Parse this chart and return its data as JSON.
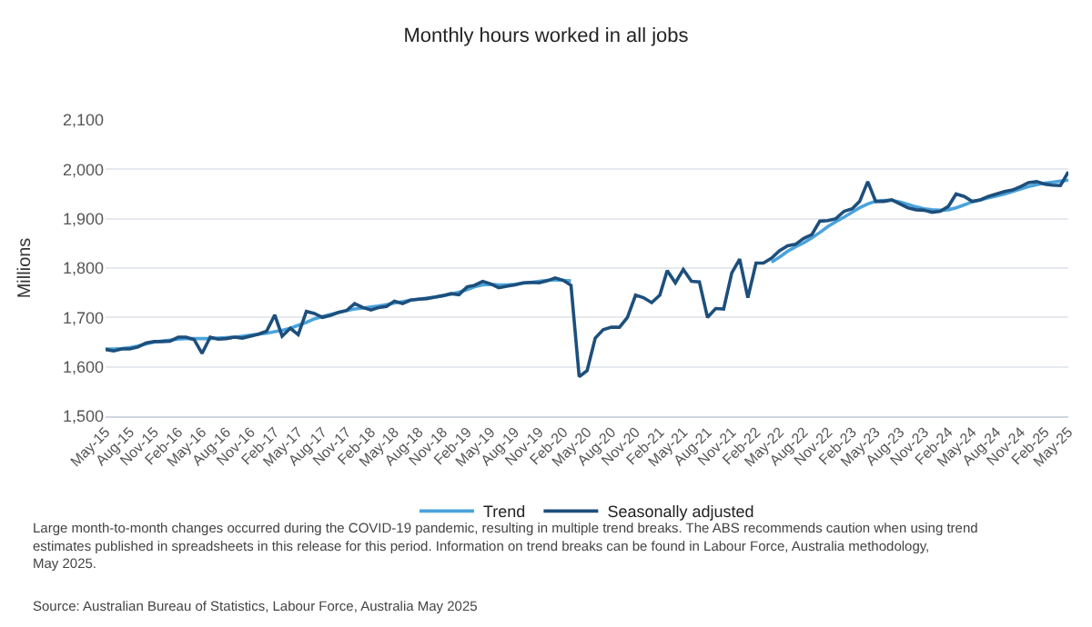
{
  "chart_data": {
    "type": "line",
    "title": "Monthly hours worked in all jobs",
    "ylabel": "Millions",
    "x": [
      "2015-05",
      "2015-06",
      "2015-07",
      "2015-08",
      "2015-09",
      "2015-10",
      "2015-11",
      "2015-12",
      "2016-01",
      "2016-02",
      "2016-03",
      "2016-04",
      "2016-05",
      "2016-06",
      "2016-07",
      "2016-08",
      "2016-09",
      "2016-10",
      "2016-11",
      "2016-12",
      "2017-01",
      "2017-02",
      "2017-03",
      "2017-04",
      "2017-05",
      "2017-06",
      "2017-07",
      "2017-08",
      "2017-09",
      "2017-10",
      "2017-11",
      "2017-12",
      "2018-01",
      "2018-02",
      "2018-03",
      "2018-04",
      "2018-05",
      "2018-06",
      "2018-07",
      "2018-08",
      "2018-09",
      "2018-10",
      "2018-11",
      "2018-12",
      "2019-01",
      "2019-02",
      "2019-03",
      "2019-04",
      "2019-05",
      "2019-06",
      "2019-07",
      "2019-08",
      "2019-09",
      "2019-10",
      "2019-11",
      "2019-12",
      "2020-01",
      "2020-02",
      "2020-03",
      "2020-04",
      "2020-05",
      "2020-06",
      "2020-07",
      "2020-08",
      "2020-09",
      "2020-10",
      "2020-11",
      "2020-12",
      "2021-01",
      "2021-02",
      "2021-03",
      "2021-04",
      "2021-05",
      "2021-06",
      "2021-07",
      "2021-08",
      "2021-09",
      "2021-10",
      "2021-11",
      "2021-12",
      "2022-01",
      "2022-02",
      "2022-03",
      "2022-04",
      "2022-05",
      "2022-06",
      "2022-07",
      "2022-08",
      "2022-09",
      "2022-10",
      "2022-11",
      "2022-12",
      "2023-01",
      "2023-02",
      "2023-03",
      "2023-04",
      "2023-05",
      "2023-06",
      "2023-07",
      "2023-08",
      "2023-09",
      "2023-10",
      "2023-11",
      "2023-12",
      "2024-01",
      "2024-02",
      "2024-03",
      "2024-04",
      "2024-05",
      "2024-06",
      "2024-07",
      "2024-08",
      "2024-09",
      "2024-10",
      "2024-11",
      "2024-12",
      "2025-01",
      "2025-02",
      "2025-03",
      "2025-04",
      "2025-05"
    ],
    "series": [
      {
        "name": "Trend",
        "color": "#4ba3dc",
        "values": [
          1636,
          1636,
          1637,
          1639,
          1642,
          1646,
          1650,
          1652,
          1654,
          1656,
          1657,
          1657,
          1657,
          1657,
          1658,
          1659,
          1660,
          1662,
          1664,
          1666,
          1668,
          1671,
          1674,
          1678,
          1684,
          1690,
          1697,
          1702,
          1706,
          1710,
          1714,
          1717,
          1719,
          1721,
          1723,
          1726,
          1729,
          1732,
          1735,
          1737,
          1739,
          1741,
          1744,
          1747,
          1751,
          1756,
          1762,
          1766,
          1767,
          1766,
          1766,
          1767,
          1769,
          1771,
          1773,
          1775,
          1776,
          1775,
          1774,
          null,
          null,
          null,
          null,
          null,
          null,
          null,
          null,
          null,
          null,
          null,
          null,
          null,
          null,
          null,
          null,
          null,
          null,
          null,
          null,
          null,
          null,
          null,
          null,
          1812,
          1822,
          1834,
          1843,
          1851,
          1861,
          1872,
          1884,
          1894,
          1903,
          1913,
          1922,
          1930,
          1935,
          1937,
          1937,
          1934,
          1929,
          1924,
          1920,
          1918,
          1917,
          1918,
          1922,
          1928,
          1934,
          1938,
          1942,
          1946,
          1950,
          1955,
          1960,
          1965,
          1969,
          1972,
          1974,
          1976,
          1978
        ]
      },
      {
        "name": "Seasonally adjusted",
        "color": "#1d4f7c",
        "values": [
          1635,
          1632,
          1636,
          1636,
          1640,
          1648,
          1651,
          1651,
          1652,
          1660,
          1660,
          1655,
          1627,
          1660,
          1656,
          1657,
          1660,
          1658,
          1662,
          1666,
          1672,
          1705,
          1662,
          1678,
          1665,
          1712,
          1708,
          1700,
          1704,
          1710,
          1714,
          1728,
          1720,
          1715,
          1720,
          1722,
          1733,
          1728,
          1735,
          1737,
          1738,
          1741,
          1744,
          1748,
          1746,
          1762,
          1765,
          1773,
          1768,
          1760,
          1763,
          1766,
          1770,
          1771,
          1770,
          1774,
          1780,
          1775,
          1765,
          1580,
          1592,
          1658,
          1675,
          1680,
          1680,
          1700,
          1745,
          1740,
          1730,
          1745,
          1795,
          1770,
          1797,
          1773,
          1772,
          1700,
          1718,
          1717,
          1790,
          1818,
          1740,
          1810,
          1810,
          1820,
          1835,
          1845,
          1848,
          1860,
          1868,
          1895,
          1896,
          1900,
          1915,
          1920,
          1935,
          1975,
          1935,
          1935,
          1938,
          1930,
          1922,
          1918,
          1917,
          1913,
          1915,
          1925,
          1950,
          1945,
          1935,
          1938,
          1945,
          1950,
          1955,
          1958,
          1965,
          1973,
          1975,
          1970,
          1968,
          1967,
          1995
        ]
      }
    ],
    "xlim": [
      "2015-05",
      "2025-05"
    ],
    "xticks": [
      {
        "value": "2015-05",
        "label": "May-15"
      },
      {
        "value": "2015-08",
        "label": "Aug-15"
      },
      {
        "value": "2015-11",
        "label": "Nov-15"
      },
      {
        "value": "2016-02",
        "label": "Feb-16"
      },
      {
        "value": "2016-05",
        "label": "May-16"
      },
      {
        "value": "2016-08",
        "label": "Aug-16"
      },
      {
        "value": "2016-11",
        "label": "Nov-16"
      },
      {
        "value": "2017-02",
        "label": "Feb-17"
      },
      {
        "value": "2017-05",
        "label": "May-17"
      },
      {
        "value": "2017-08",
        "label": "Aug-17"
      },
      {
        "value": "2017-11",
        "label": "Nov-17"
      },
      {
        "value": "2018-02",
        "label": "Feb-18"
      },
      {
        "value": "2018-05",
        "label": "May-18"
      },
      {
        "value": "2018-08",
        "label": "Aug-18"
      },
      {
        "value": "2018-11",
        "label": "Nov-18"
      },
      {
        "value": "2019-02",
        "label": "Feb-19"
      },
      {
        "value": "2019-05",
        "label": "May-19"
      },
      {
        "value": "2019-08",
        "label": "Aug-19"
      },
      {
        "value": "2019-11",
        "label": "Nov-19"
      },
      {
        "value": "2020-02",
        "label": "Feb-20"
      },
      {
        "value": "2020-05",
        "label": "May-20"
      },
      {
        "value": "2020-08",
        "label": "Aug-20"
      },
      {
        "value": "2020-11",
        "label": "Nov-20"
      },
      {
        "value": "2021-02",
        "label": "Feb-21"
      },
      {
        "value": "2021-05",
        "label": "May-21"
      },
      {
        "value": "2021-08",
        "label": "Aug-21"
      },
      {
        "value": "2021-11",
        "label": "Nov-21"
      },
      {
        "value": "2022-02",
        "label": "Feb-22"
      },
      {
        "value": "2022-05",
        "label": "May-22"
      },
      {
        "value": "2022-08",
        "label": "Aug-22"
      },
      {
        "value": "2022-11",
        "label": "Nov-22"
      },
      {
        "value": "2023-02",
        "label": "Feb-23"
      },
      {
        "value": "2023-05",
        "label": "May-23"
      },
      {
        "value": "2023-08",
        "label": "Aug-23"
      },
      {
        "value": "2023-11",
        "label": "Nov-23"
      },
      {
        "value": "2024-02",
        "label": "Feb-24"
      },
      {
        "value": "2024-05",
        "label": "May-24"
      },
      {
        "value": "2024-08",
        "label": "Aug-24"
      },
      {
        "value": "2024-11",
        "label": "Nov-24"
      },
      {
        "value": "2025-02",
        "label": "Feb-25"
      },
      {
        "value": "2025-05",
        "label": "May-25"
      }
    ],
    "ylim": [
      1500,
      2100
    ],
    "yticks": [
      {
        "value": 1500,
        "label": "1,500"
      },
      {
        "value": 1600,
        "label": "1,600"
      },
      {
        "value": 1700,
        "label": "1,700"
      },
      {
        "value": 1800,
        "label": "1,800"
      },
      {
        "value": 1900,
        "label": "1,900"
      },
      {
        "value": 2000,
        "label": "2,000"
      },
      {
        "value": 2100,
        "label": "2,100"
      }
    ],
    "grid": "y",
    "legend": "bottom",
    "marker": "none",
    "line_style": "solid",
    "annotations": [
      "Large month-to-month changes occurred during the COVID-19 pandemic, resulting in multiple trend breaks. The ABS recommends caution when using trend estimates published in spreadsheets in this release for this period. Information on trend breaks can be found in Labour Force, Australia methodology, May 2025.",
      "Source: Australian Bureau of Statistics, Labour Force, Australia May 2025"
    ]
  }
}
